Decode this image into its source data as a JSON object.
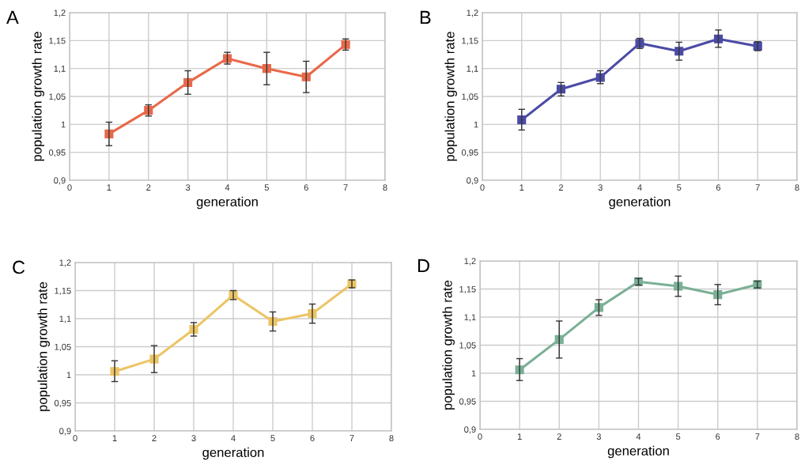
{
  "chart_data": [
    {
      "type": "line",
      "title": "A",
      "xlabel": "generation",
      "ylabel": "population growth rate",
      "x": [
        1,
        2,
        3,
        4,
        5,
        6,
        7
      ],
      "series": [
        {
          "color": "#e8694a",
          "values": [
            0.983,
            1.025,
            1.075,
            1.118,
            1.1,
            1.085,
            1.143
          ],
          "errors": [
            [
              0.962,
              1.004
            ],
            [
              1.015,
              1.035
            ],
            [
              1.054,
              1.096
            ],
            [
              1.108,
              1.129
            ],
            [
              1.071,
              1.129
            ],
            [
              1.057,
              1.113
            ],
            [
              1.133,
              1.153
            ]
          ]
        }
      ],
      "xlim": [
        0,
        8
      ],
      "xticks": [
        0,
        1,
        2,
        3,
        4,
        5,
        6,
        7,
        8
      ],
      "ylim": [
        0.9,
        1.2
      ],
      "yticks": [
        {
          "value": 0.9,
          "label": "0,9"
        },
        {
          "value": 0.95,
          "label": "0,95"
        },
        1,
        {
          "value": 1.05,
          "label": "1,05"
        },
        {
          "value": 1.1,
          "label": "1,1"
        },
        {
          "value": 1.15,
          "label": "1,15"
        },
        {
          "value": 1.2,
          "label": "1,2"
        }
      ],
      "grid": true,
      "marker": "square",
      "line_style": "solid"
    },
    {
      "type": "line",
      "title": "B",
      "xlabel": "generation",
      "ylabel": "population growth rate",
      "x": [
        1,
        2,
        3,
        4,
        5,
        6,
        7
      ],
      "series": [
        {
          "color": "#4b4ba6",
          "values": [
            1.008,
            1.063,
            1.084,
            1.145,
            1.131,
            1.153,
            1.14
          ],
          "errors": [
            [
              0.99,
              1.027
            ],
            [
              1.051,
              1.075
            ],
            [
              1.073,
              1.096
            ],
            [
              1.136,
              1.154
            ],
            [
              1.115,
              1.147
            ],
            [
              1.138,
              1.169
            ],
            [
              1.132,
              1.148
            ]
          ]
        }
      ],
      "xlim": [
        0,
        8
      ],
      "xticks": [
        0,
        1,
        2,
        3,
        4,
        5,
        6,
        7,
        8
      ],
      "ylim": [
        0.9,
        1.2
      ],
      "yticks": [
        {
          "value": 0.9,
          "label": "0,9"
        },
        {
          "value": 0.95,
          "label": "0,95"
        },
        1,
        {
          "value": 1.05,
          "label": "1,05"
        },
        {
          "value": 1.1,
          "label": "1,1"
        },
        {
          "value": 1.15,
          "label": "1,15"
        },
        {
          "value": 1.2,
          "label": "1,2"
        }
      ],
      "grid": true,
      "marker": "square",
      "line_style": "solid"
    },
    {
      "type": "line",
      "title": "C",
      "xlabel": "generation",
      "ylabel": "population growth rate",
      "x": [
        1,
        2,
        3,
        4,
        5,
        6,
        7
      ],
      "series": [
        {
          "color": "#ecc464",
          "values": [
            1.006,
            1.028,
            1.081,
            1.142,
            1.095,
            1.109,
            1.162
          ],
          "errors": [
            [
              0.988,
              1.025
            ],
            [
              1.004,
              1.052
            ],
            [
              1.069,
              1.093
            ],
            [
              1.134,
              1.15
            ],
            [
              1.078,
              1.112
            ],
            [
              1.092,
              1.126
            ],
            [
              1.155,
              1.169
            ]
          ]
        }
      ],
      "xlim": [
        0,
        8
      ],
      "xticks": [
        0,
        1,
        2,
        3,
        4,
        5,
        6,
        7,
        8
      ],
      "ylim": [
        0.9,
        1.2
      ],
      "yticks": [
        {
          "value": 0.9,
          "label": "0,9"
        },
        {
          "value": 0.95,
          "label": "0,95"
        },
        1,
        {
          "value": 1.05,
          "label": "1,05"
        },
        {
          "value": 1.1,
          "label": "1,1"
        },
        {
          "value": 1.15,
          "label": "1,15"
        },
        {
          "value": 1.2,
          "label": "1,2"
        }
      ],
      "grid": true,
      "marker": "square",
      "line_style": "solid"
    },
    {
      "type": "line",
      "title": "D",
      "xlabel": "generation",
      "ylabel": "population growth rate",
      "x": [
        1,
        2,
        3,
        4,
        5,
        6,
        7
      ],
      "series": [
        {
          "color": "#7ab096",
          "values": [
            1.006,
            1.06,
            1.117,
            1.163,
            1.155,
            1.14,
            1.158
          ],
          "errors": [
            [
              0.987,
              1.026
            ],
            [
              1.027,
              1.093
            ],
            [
              1.103,
              1.131
            ],
            [
              1.157,
              1.169
            ],
            [
              1.137,
              1.173
            ],
            [
              1.122,
              1.158
            ],
            [
              1.152,
              1.164
            ]
          ]
        }
      ],
      "xlim": [
        0,
        8
      ],
      "xticks": [
        0,
        1,
        2,
        3,
        4,
        5,
        6,
        7,
        8
      ],
      "ylim": [
        0.9,
        1.2
      ],
      "yticks": [
        {
          "value": 0.9,
          "label": "0,9"
        },
        {
          "value": 0.95,
          "label": "0,95"
        },
        1,
        {
          "value": 1.05,
          "label": "1,05"
        },
        {
          "value": 1.1,
          "label": "1,1"
        },
        {
          "value": 1.15,
          "label": "1,15"
        },
        {
          "value": 1.2,
          "label": "1,2"
        }
      ],
      "grid": true,
      "marker": "square",
      "line_style": "solid"
    }
  ]
}
